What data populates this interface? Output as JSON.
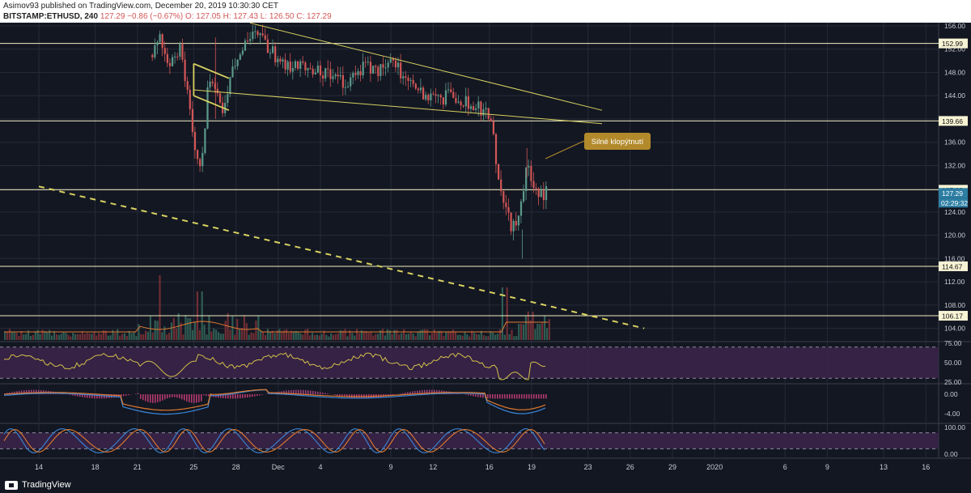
{
  "header": {
    "publisher_line": "Asimov93 published on TradingView.com, December 20, 2019 10:30:30 CET",
    "symbol": "BITSTAMP:ETHUSD, 240",
    "last": "127.29",
    "change": "−0.86 (−0.67%)",
    "ohlc": "O: 127.05 H: 127.43 L: 126.50 C: 127.29"
  },
  "footer": {
    "brand": "TradingView"
  },
  "annotation": {
    "text": "Silné klopýtnutí"
  },
  "price_labels": {
    "level_152": "152.99",
    "level_139": "139.66",
    "level_127": "127.83",
    "current": "127.29",
    "countdown": "02:29:32",
    "level_114": "114.67",
    "level_106": "106.17"
  },
  "colors": {
    "background": "#131722",
    "grid": "#262b38",
    "up": "#5b9a8b",
    "down": "#d35656",
    "trendline": "#d8d160",
    "level_line": "#f0edc0",
    "rsi": "#d4c04a",
    "rsi_band": "#3a2448",
    "macd": "#3b87d8",
    "signal": "#e07a2e",
    "stoch_k": "#3b87d8",
    "stoch_d": "#e07a2e",
    "annotation_bg": "#b38a2b",
    "current_label": "#2d7ea3"
  },
  "chart_data": [
    {
      "type": "candlestick",
      "title": "BITSTAMP:ETHUSD, 240",
      "ylim": [
        102,
        156
      ],
      "y_ticks": [
        "156.00",
        "152.00",
        "148.00",
        "144.00",
        "140.00",
        "136.00",
        "132.00",
        "128.00",
        "124.00",
        "120.00",
        "116.00",
        "112.00",
        "108.00",
        "104.00"
      ],
      "x_ticks": [
        "14",
        "18",
        "21",
        "25",
        "28",
        "Dec",
        "4",
        "9",
        "12",
        "16",
        "19",
        "23",
        "26",
        "29",
        "2020",
        "6",
        "9",
        "13",
        "16"
      ],
      "x_tick_dates": [
        "2019-11-14",
        "2019-11-18",
        "2019-11-21",
        "2019-11-25",
        "2019-11-28",
        "2019-12-01",
        "2019-12-04",
        "2019-12-09",
        "2019-12-12",
        "2019-12-16",
        "2019-12-19",
        "2019-12-23",
        "2019-12-26",
        "2019-12-29",
        "2020-01-01",
        "2020-01-06",
        "2020-01-09",
        "2020-01-13",
        "2020-01-16"
      ],
      "horizontal_levels": [
        152.99,
        139.66,
        127.83,
        114.67,
        106.17
      ],
      "current_price": 127.29,
      "price_path": [
        [
          "2019-11-22",
          151
        ],
        [
          "2019-11-22T12:00",
          154
        ],
        [
          "2019-11-23",
          149
        ],
        [
          "2019-11-24",
          152
        ],
        [
          "2019-11-25",
          136
        ],
        [
          "2019-11-25T12:00",
          131
        ],
        [
          "2019-11-26",
          148
        ],
        [
          "2019-11-27",
          142
        ],
        [
          "2019-11-28",
          151
        ],
        [
          "2019-11-29",
          155
        ],
        [
          "2019-11-30",
          153
        ],
        [
          "2019-12-01",
          150
        ],
        [
          "2019-12-02",
          149
        ],
        [
          "2019-12-03",
          149
        ],
        [
          "2019-12-04",
          148
        ],
        [
          "2019-12-05",
          147
        ],
        [
          "2019-12-06",
          146
        ],
        [
          "2019-12-07",
          149
        ],
        [
          "2019-12-08",
          148
        ],
        [
          "2019-12-09",
          150
        ],
        [
          "2019-12-10",
          147
        ],
        [
          "2019-12-11",
          145
        ],
        [
          "2019-12-12",
          143
        ],
        [
          "2019-12-13",
          144
        ],
        [
          "2019-12-14",
          143
        ],
        [
          "2019-12-15",
          142
        ],
        [
          "2019-12-16",
          141
        ],
        [
          "2019-12-16T12:00",
          131
        ],
        [
          "2019-12-17",
          126
        ],
        [
          "2019-12-17T12:00",
          121
        ],
        [
          "2019-12-18",
          123
        ],
        [
          "2019-12-18T08:00",
          128
        ],
        [
          "2019-12-18T16:00",
          132
        ],
        [
          "2019-12-19",
          128
        ],
        [
          "2019-12-19T12:00",
          127
        ],
        [
          "2019-12-20",
          127.29
        ]
      ],
      "trendlines": [
        {
          "style": "solid",
          "from": [
            "2019-11-29",
            156.5
          ],
          "to": [
            "2019-12-24",
            141.5
          ]
        },
        {
          "style": "solid",
          "from": [
            "2019-11-25",
            145.0
          ],
          "to": [
            "2019-12-24",
            139.2
          ]
        },
        {
          "style": "dashed",
          "from": [
            "2019-11-14",
            128.4
          ],
          "to": [
            "2019-12-27",
            104.0
          ]
        }
      ]
    },
    {
      "type": "line",
      "title": "RSI",
      "ylim": [
        25,
        75
      ],
      "y_ticks": [
        "75.00",
        "50.00",
        "25.00"
      ],
      "bands": [
        70,
        30
      ]
    },
    {
      "type": "line",
      "title": "MACD",
      "y_ticks": [
        "0.00",
        "-4.00"
      ]
    },
    {
      "type": "line",
      "title": "Stochastic RSI",
      "ylim": [
        0,
        100
      ],
      "y_ticks": [
        "100.00",
        "0.00"
      ]
    }
  ]
}
